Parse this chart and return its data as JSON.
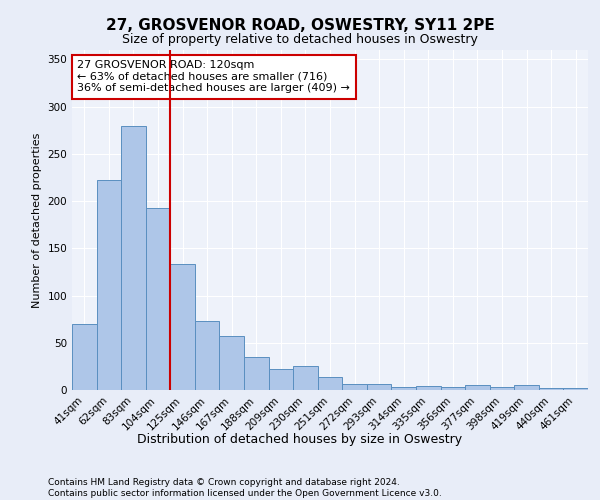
{
  "title": "27, GROSVENOR ROAD, OSWESTRY, SY11 2PE",
  "subtitle": "Size of property relative to detached houses in Oswestry",
  "xlabel": "Distribution of detached houses by size in Oswestry",
  "ylabel": "Number of detached properties",
  "categories": [
    "41sqm",
    "62sqm",
    "83sqm",
    "104sqm",
    "125sqm",
    "146sqm",
    "167sqm",
    "188sqm",
    "209sqm",
    "230sqm",
    "251sqm",
    "272sqm",
    "293sqm",
    "314sqm",
    "335sqm",
    "356sqm",
    "377sqm",
    "398sqm",
    "419sqm",
    "440sqm",
    "461sqm"
  ],
  "values": [
    70,
    222,
    280,
    193,
    133,
    73,
    57,
    35,
    22,
    25,
    14,
    6,
    6,
    3,
    4,
    3,
    5,
    3,
    5,
    2,
    2
  ],
  "bar_color": "#aec6e8",
  "bar_edge_color": "#5a8fc0",
  "vline_color": "#cc0000",
  "annotation_box_text": "27 GROSVENOR ROAD: 120sqm\n← 63% of detached houses are smaller (716)\n36% of semi-detached houses are larger (409) →",
  "annotation_box_color": "#cc0000",
  "annotation_box_bg": "white",
  "ylim": [
    0,
    360
  ],
  "yticks": [
    0,
    50,
    100,
    150,
    200,
    250,
    300,
    350
  ],
  "footer": "Contains HM Land Registry data © Crown copyright and database right 2024.\nContains public sector information licensed under the Open Government Licence v3.0.",
  "bg_color": "#e8edf8",
  "plot_bg": "#eef2fa",
  "title_fontsize": 11,
  "subtitle_fontsize": 9,
  "ylabel_fontsize": 8,
  "xlabel_fontsize": 9,
  "tick_fontsize": 7.5,
  "footer_fontsize": 6.5,
  "ann_fontsize": 8
}
